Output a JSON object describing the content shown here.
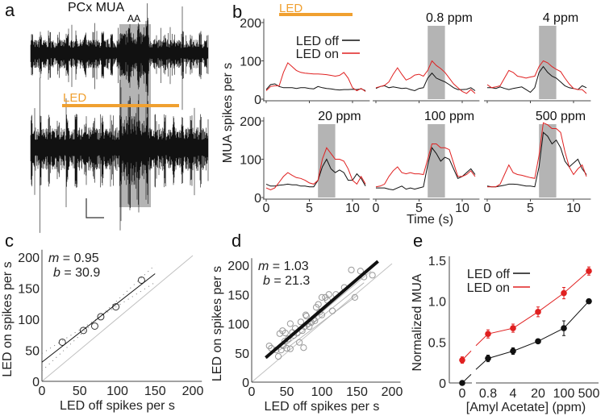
{
  "panel_labels": {
    "a": "a",
    "b": "b",
    "c": "c",
    "d": "d",
    "e": "e"
  },
  "colors": {
    "led": "#f0a030",
    "off": "#111111",
    "on": "#e02020",
    "odor": "#b4b4b4",
    "unity": "#c0c0c0"
  },
  "panel_a": {
    "title": "PCx MUA",
    "odor_label": "AA",
    "led_label": "LED"
  },
  "chart_data": [
    {
      "panel": "b",
      "type": "line",
      "led_label": "LED",
      "led_on_s": [
        1.5,
        10
      ],
      "odor_window_s": [
        6,
        8
      ],
      "xlabel": "Time (s)",
      "ylabel": "MUA spikes per s",
      "xlim": [
        0,
        12
      ],
      "ylim": [
        0,
        200
      ],
      "xticks": [
        0,
        5,
        10
      ],
      "yticks": [
        0,
        100,
        200
      ],
      "legend": {
        "off": "LED off",
        "on": "LED on",
        "placement": "top-left"
      },
      "dt_s": 0.5,
      "subplots": [
        {
          "title": "",
          "odor": false,
          "off": [
            25,
            38,
            40,
            33,
            30,
            30,
            30,
            28,
            30,
            30,
            28,
            27,
            33,
            30,
            28,
            27,
            25,
            24,
            25,
            25,
            26,
            25,
            27,
            22
          ],
          "on": [
            22,
            33,
            35,
            35,
            70,
            95,
            85,
            75,
            70,
            68,
            67,
            66,
            66,
            65,
            64,
            62,
            60,
            62,
            70,
            55,
            30,
            22,
            28,
            20
          ]
        },
        {
          "title": "0.8 ppm",
          "odor": true,
          "off": [
            28,
            33,
            35,
            30,
            32,
            30,
            28,
            29,
            25,
            22,
            28,
            30,
            55,
            68,
            55,
            50,
            45,
            38,
            30,
            25,
            25,
            26,
            30,
            22
          ],
          "on": [
            30,
            33,
            36,
            45,
            65,
            82,
            65,
            50,
            55,
            63,
            65,
            60,
            75,
            100,
            88,
            80,
            70,
            55,
            40,
            30,
            20,
            15,
            25,
            15
          ]
        },
        {
          "title": "4 ppm",
          "odor": true,
          "off": [
            30,
            30,
            28,
            32,
            28,
            25,
            28,
            30,
            32,
            25,
            18,
            30,
            70,
            85,
            70,
            60,
            55,
            45,
            35,
            30,
            28,
            25,
            35,
            30
          ],
          "on": [
            38,
            30,
            32,
            35,
            55,
            75,
            70,
            60,
            58,
            55,
            58,
            60,
            85,
            100,
            95,
            85,
            78,
            72,
            55,
            40,
            28,
            25,
            25,
            15
          ]
        },
        {
          "title": "20 ppm",
          "odor": true,
          "off": [
            35,
            30,
            30,
            32,
            33,
            35,
            33,
            33,
            30,
            30,
            28,
            28,
            45,
            80,
            100,
            75,
            65,
            72,
            65,
            45,
            45,
            62,
            50,
            30
          ],
          "on": [
            25,
            20,
            25,
            40,
            55,
            65,
            58,
            52,
            50,
            45,
            38,
            35,
            45,
            100,
            130,
            115,
            100,
            100,
            95,
            75,
            45,
            35,
            55,
            35
          ]
        },
        {
          "title": "100 ppm",
          "odor": true,
          "off": [
            25,
            25,
            25,
            22,
            20,
            25,
            30,
            22,
            25,
            22,
            25,
            28,
            85,
            130,
            115,
            95,
            105,
            100,
            75,
            50,
            55,
            65,
            75,
            60
          ],
          "on": [
            28,
            30,
            35,
            55,
            70,
            80,
            65,
            62,
            65,
            62,
            62,
            60,
            100,
            140,
            140,
            130,
            130,
            125,
            90,
            55,
            55,
            60,
            70,
            55
          ]
        },
        {
          "title": "500 ppm",
          "odor": true,
          "off": [
            30,
            28,
            28,
            30,
            32,
            35,
            35,
            34,
            32,
            30,
            30,
            28,
            80,
            170,
            160,
            140,
            150,
            130,
            95,
            80,
            90,
            100,
            75,
            60
          ],
          "on": [
            28,
            28,
            28,
            35,
            60,
            85,
            65,
            60,
            58,
            55,
            52,
            50,
            110,
            195,
            190,
            180,
            180,
            170,
            120,
            80,
            60,
            75,
            85,
            55
          ]
        }
      ]
    },
    {
      "panel": "c",
      "type": "scatter",
      "xlabel": "LED off spikes per s",
      "ylabel": "LED on spikes per s",
      "xlim": [
        0,
        200
      ],
      "ylim": [
        0,
        200
      ],
      "xticks": [
        0,
        50,
        100,
        150,
        200
      ],
      "yticks": [
        0,
        50,
        100,
        150,
        200
      ],
      "fit": {
        "m": 0.95,
        "b": 30.9,
        "m_label": "m",
        "b_label": "b",
        "m_text": "= 0.95",
        "b_text": "= 30.9",
        "x_range": [
          0,
          150
        ]
      },
      "points": [
        [
          27,
          63
        ],
        [
          55,
          82
        ],
        [
          70,
          89
        ],
        [
          78,
          104
        ],
        [
          98,
          120
        ],
        [
          132,
          163
        ]
      ]
    },
    {
      "panel": "d",
      "type": "scatter",
      "xlabel": "LED off spikes per s",
      "ylabel": "LED on spikes per s",
      "xlim": [
        0,
        200
      ],
      "ylim": [
        0,
        200
      ],
      "xticks": [
        0,
        50,
        100,
        150,
        200
      ],
      "yticks": [
        0,
        50,
        100,
        150,
        200
      ],
      "fit": {
        "m": 1.03,
        "b": 21.3,
        "m_label": "m",
        "b_label": "b",
        "m_text": "= 1.03",
        "b_text": "= 21.3",
        "x_range": [
          20,
          180
        ]
      },
      "points": [
        [
          25,
          62
        ],
        [
          28,
          58
        ],
        [
          35,
          55
        ],
        [
          38,
          44
        ],
        [
          40,
          83
        ],
        [
          42,
          55
        ],
        [
          44,
          88
        ],
        [
          45,
          62
        ],
        [
          47,
          70
        ],
        [
          48,
          84
        ],
        [
          50,
          58
        ],
        [
          52,
          74
        ],
        [
          55,
          100
        ],
        [
          55,
          57
        ],
        [
          58,
          85
        ],
        [
          60,
          80
        ],
        [
          62,
          92
        ],
        [
          65,
          84
        ],
        [
          68,
          68
        ],
        [
          70,
          103
        ],
        [
          72,
          88
        ],
        [
          74,
          59
        ],
        [
          75,
          95
        ],
        [
          77,
          115
        ],
        [
          78,
          113
        ],
        [
          80,
          100
        ],
        [
          82,
          95
        ],
        [
          85,
          102
        ],
        [
          88,
          108
        ],
        [
          90,
          105
        ],
        [
          92,
          128
        ],
        [
          95,
          133
        ],
        [
          97,
          120
        ],
        [
          100,
          115
        ],
        [
          100,
          145
        ],
        [
          105,
          145
        ],
        [
          108,
          140
        ],
        [
          110,
          150
        ],
        [
          115,
          122
        ],
        [
          120,
          150
        ],
        [
          132,
          162
        ],
        [
          142,
          192
        ],
        [
          147,
          145
        ],
        [
          155,
          190
        ],
        [
          160,
          180
        ],
        [
          172,
          183
        ]
      ]
    },
    {
      "panel": "e",
      "type": "line",
      "xlabel": "[Amyl Acetate] (ppm)",
      "ylabel": "Normalized MUA",
      "categories": [
        "0",
        "0.8",
        "4",
        "20",
        "100",
        "500"
      ],
      "ylim": [
        0,
        1.5
      ],
      "yticks": [
        "0",
        "0.5",
        "1.0",
        "1.5"
      ],
      "legend": {
        "placement": "top-left"
      },
      "series": [
        {
          "name": "LED off",
          "key": "off",
          "values": [
            0,
            0.3,
            0.39,
            0.51,
            0.67,
            1.0
          ],
          "err": [
            0.01,
            0.04,
            0.04,
            0.02,
            0.09,
            0.01
          ]
        },
        {
          "name": "LED on",
          "key": "on",
          "values": [
            0.28,
            0.6,
            0.67,
            0.87,
            1.1,
            1.37
          ],
          "err": [
            0.04,
            0.05,
            0.05,
            0.06,
            0.07,
            0.05
          ]
        }
      ]
    }
  ]
}
